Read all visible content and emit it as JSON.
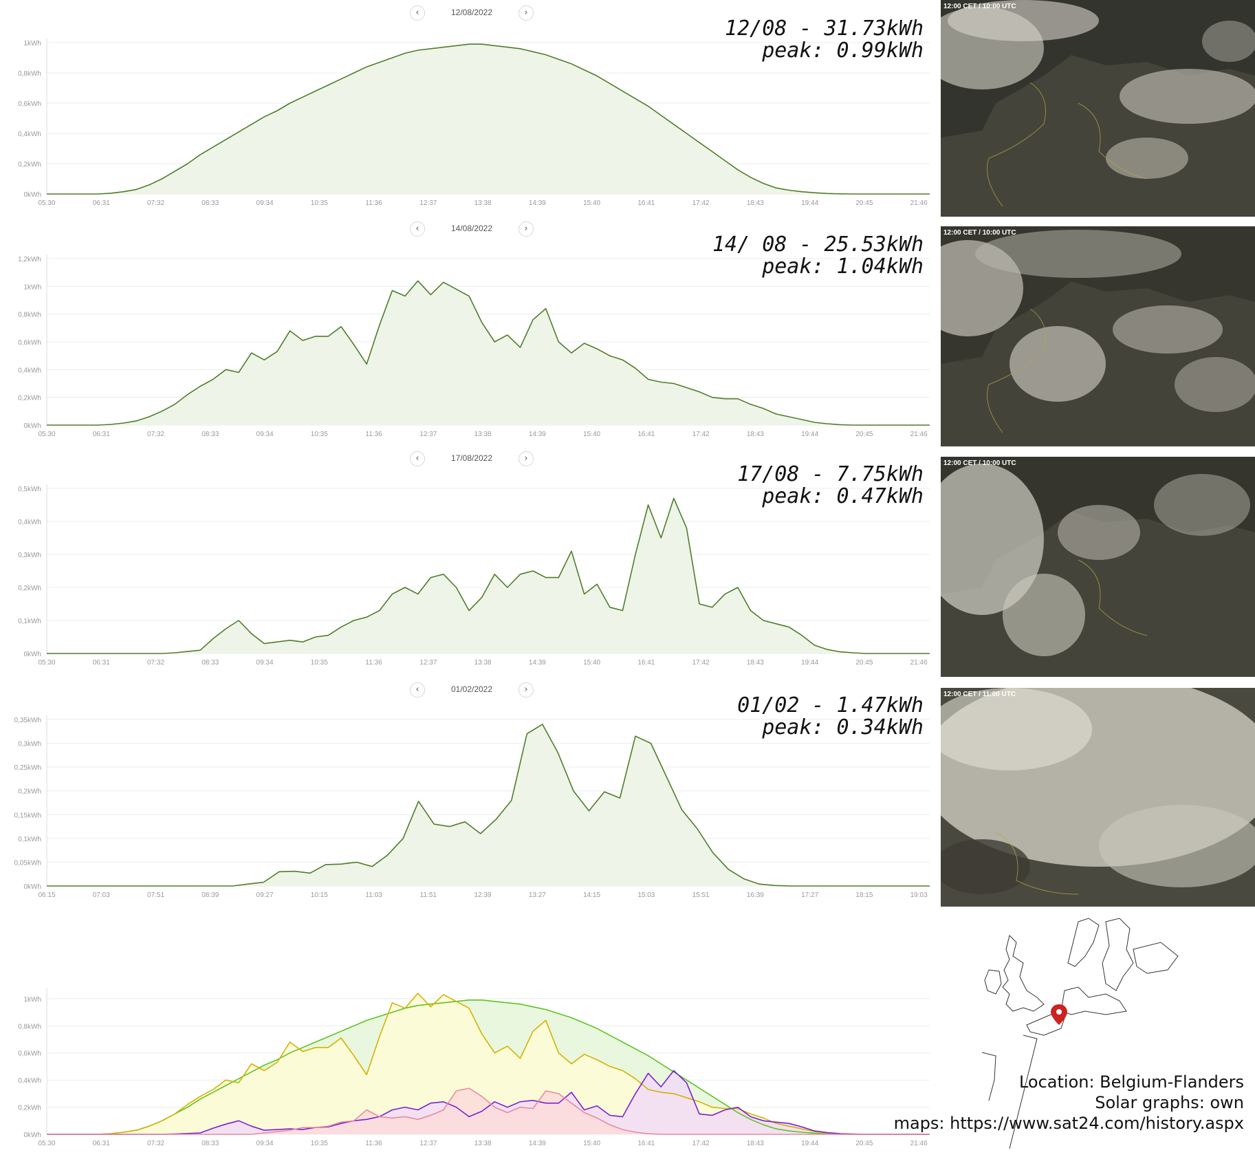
{
  "colors": {
    "line": "#4f7d28",
    "fill": "#eef4e8",
    "grid": "#ececec",
    "axis": "#999999",
    "sat_text": "#ffffff",
    "map_pin": "#cc2222"
  },
  "icons": {
    "prev": "chevron-left-icon",
    "next": "chevron-right-icon",
    "pin": "map-pin-icon"
  },
  "panels": [
    {
      "nav": {
        "prev": "‹",
        "date": "12/08/2022",
        "next": "›"
      },
      "summary": {
        "line1": "12/08 - 31.73kWh",
        "line2": "peak: 0.99kWh"
      },
      "satellite": {
        "label": "12:00 CET / 10:00 UTC"
      }
    },
    {
      "nav": {
        "prev": "‹",
        "date": "14/08/2022",
        "next": "›"
      },
      "summary": {
        "line1": "14/ 08 - 25.53kWh",
        "line2": "peak: 1.04kWh"
      },
      "satellite": {
        "label": "12:00 CET / 10:00 UTC"
      }
    },
    {
      "nav": {
        "prev": "‹",
        "date": "17/08/2022",
        "next": "›"
      },
      "summary": {
        "line1": "17/08 - 7.75kWh",
        "line2": "peak: 0.47kWh"
      },
      "satellite": {
        "label": "12:00 CET / 10:00 UTC"
      }
    },
    {
      "nav": {
        "prev": "‹",
        "date": "01/02/2022",
        "next": "›"
      },
      "summary": {
        "line1": "01/02 - 1.47kWh",
        "line2": "peak: 0.34kWh"
      },
      "satellite": {
        "label": "12:00 CET / 11:00 UTC"
      }
    }
  ],
  "credits": {
    "line1": "Location: Belgium-Flanders",
    "line2": "Solar graphs: own",
    "line3": "maps: https://www.sat24.com/history.aspx"
  },
  "chart_data": [
    {
      "type": "area",
      "title": "12/08/2022",
      "x_labels": [
        "05:30",
        "06:31",
        "07:32",
        "08:33",
        "09:34",
        "10:35",
        "11:36",
        "12:37",
        "13:38",
        "14:39",
        "15:40",
        "16:41",
        "17:42",
        "18:43",
        "19:44",
        "20:45",
        "21:46"
      ],
      "y_labels": [
        "0kWh",
        "0,2kWh",
        "0,4kWh",
        "0,6kWh",
        "0,8kWh",
        "1kWh"
      ],
      "ylim": [
        0,
        1
      ],
      "series": [
        {
          "values": [
            0,
            0,
            0,
            0,
            0,
            0.005,
            0.015,
            0.03,
            0.06,
            0.1,
            0.15,
            0.2,
            0.26,
            0.31,
            0.36,
            0.41,
            0.46,
            0.51,
            0.55,
            0.6,
            0.64,
            0.68,
            0.72,
            0.76,
            0.8,
            0.84,
            0.87,
            0.9,
            0.93,
            0.95,
            0.96,
            0.97,
            0.98,
            0.99,
            0.99,
            0.98,
            0.97,
            0.96,
            0.94,
            0.92,
            0.89,
            0.86,
            0.82,
            0.78,
            0.73,
            0.68,
            0.63,
            0.58,
            0.52,
            0.46,
            0.4,
            0.34,
            0.28,
            0.22,
            0.16,
            0.11,
            0.07,
            0.04,
            0.025,
            0.015,
            0.008,
            0.003,
            0.001,
            0,
            0,
            0,
            0,
            0,
            0,
            0
          ]
        }
      ]
    },
    {
      "type": "area",
      "title": "14/08/2022",
      "x_labels": [
        "05:30",
        "06:31",
        "07:32",
        "08:33",
        "09:34",
        "10:35",
        "11:36",
        "12:37",
        "13:38",
        "14:39",
        "15:40",
        "16:41",
        "17:42",
        "18:43",
        "19:44",
        "20:45",
        "21:46"
      ],
      "y_labels": [
        "0kWh",
        "0,2kWh",
        "0,4kWh",
        "0,6kWh",
        "0,8kWh",
        "1kWh",
        "1,2kWh"
      ],
      "ylim": [
        0,
        1.2
      ],
      "series": [
        {
          "values": [
            0,
            0,
            0,
            0,
            0,
            0.005,
            0.015,
            0.03,
            0.06,
            0.1,
            0.15,
            0.22,
            0.28,
            0.33,
            0.4,
            0.38,
            0.52,
            0.47,
            0.53,
            0.68,
            0.61,
            0.64,
            0.64,
            0.71,
            0.58,
            0.44,
            0.72,
            0.97,
            0.93,
            1.04,
            0.94,
            1.03,
            0.98,
            0.93,
            0.74,
            0.6,
            0.65,
            0.56,
            0.76,
            0.84,
            0.6,
            0.52,
            0.59,
            0.55,
            0.5,
            0.47,
            0.41,
            0.33,
            0.31,
            0.3,
            0.27,
            0.24,
            0.2,
            0.19,
            0.19,
            0.15,
            0.12,
            0.08,
            0.06,
            0.04,
            0.02,
            0.01,
            0.003,
            0,
            0,
            0,
            0,
            0,
            0,
            0
          ]
        }
      ]
    },
    {
      "type": "area",
      "title": "17/08/2022",
      "x_labels": [
        "05:30",
        "06:31",
        "07:32",
        "08:33",
        "09:34",
        "10:35",
        "11:36",
        "12:37",
        "13:38",
        "14:39",
        "15:40",
        "16:41",
        "17:42",
        "18:43",
        "19:44",
        "20:45",
        "21:46"
      ],
      "y_labels": [
        "0kWh",
        "0,1kWh",
        "0,2kWh",
        "0,3kWh",
        "0,4kWh",
        "0,5kWh"
      ],
      "ylim": [
        0,
        0.5
      ],
      "series": [
        {
          "values": [
            0,
            0,
            0,
            0,
            0,
            0,
            0,
            0,
            0,
            0,
            0.002,
            0.006,
            0.01,
            0.045,
            0.075,
            0.1,
            0.06,
            0.03,
            0.035,
            0.04,
            0.035,
            0.05,
            0.055,
            0.08,
            0.1,
            0.11,
            0.13,
            0.18,
            0.2,
            0.18,
            0.23,
            0.24,
            0.2,
            0.13,
            0.17,
            0.24,
            0.2,
            0.24,
            0.25,
            0.23,
            0.23,
            0.31,
            0.18,
            0.21,
            0.14,
            0.13,
            0.3,
            0.45,
            0.35,
            0.47,
            0.38,
            0.15,
            0.14,
            0.18,
            0.2,
            0.13,
            0.1,
            0.09,
            0.08,
            0.055,
            0.025,
            0.012,
            0.005,
            0.002,
            0,
            0,
            0,
            0,
            0,
            0
          ]
        }
      ]
    },
    {
      "type": "area",
      "title": "01/02/2022",
      "x_labels": [
        "06:15",
        "07:03",
        "07:51",
        "08:39",
        "09:27",
        "10:15",
        "11:03",
        "11:51",
        "12:39",
        "13:27",
        "14:15",
        "15:03",
        "15:51",
        "16:39",
        "17:27",
        "18:15",
        "19:03"
      ],
      "y_labels": [
        "0kWh",
        "0,05kWh",
        "0,1kWh",
        "0,15kWh",
        "0,2kWh",
        "0,25kWh",
        "0,3kWh",
        "0,35kWh"
      ],
      "ylim": [
        0,
        0.35
      ],
      "series": [
        {
          "values": [
            0,
            0,
            0,
            0,
            0,
            0,
            0,
            0,
            0,
            0,
            0,
            0,
            0,
            0.004,
            0.008,
            0.03,
            0.031,
            0.027,
            0.045,
            0.046,
            0.05,
            0.041,
            0.065,
            0.1,
            0.178,
            0.13,
            0.125,
            0.135,
            0.11,
            0.14,
            0.18,
            0.32,
            0.34,
            0.28,
            0.2,
            0.158,
            0.198,
            0.185,
            0.315,
            0.3,
            0.23,
            0.16,
            0.12,
            0.07,
            0.035,
            0.015,
            0.004,
            0.001,
            0,
            0,
            0,
            0,
            0,
            0,
            0,
            0,
            0,
            0
          ]
        }
      ]
    },
    {
      "type": "area",
      "title": "",
      "x_labels": [
        "05:30",
        "06:31",
        "07:32",
        "08:33",
        "09:34",
        "10:35",
        "11:36",
        "12:37",
        "13:38",
        "14:39",
        "15:40",
        "16:41",
        "17:42",
        "18:43",
        "19:44",
        "20:45",
        "21:46"
      ],
      "y_labels": [
        "0kWh",
        "0,2kWh",
        "0,4kWh",
        "0,6kWh",
        "0,8kWh",
        "1kWh"
      ],
      "ylim": [
        0,
        1.05
      ],
      "series": [
        {
          "color": "#5bc41f",
          "fill": "#e5f6d8",
          "values": [
            0,
            0,
            0,
            0,
            0,
            0.005,
            0.015,
            0.03,
            0.06,
            0.1,
            0.15,
            0.2,
            0.26,
            0.31,
            0.36,
            0.41,
            0.46,
            0.51,
            0.55,
            0.6,
            0.64,
            0.68,
            0.72,
            0.76,
            0.8,
            0.84,
            0.87,
            0.9,
            0.93,
            0.95,
            0.96,
            0.97,
            0.98,
            0.99,
            0.99,
            0.98,
            0.97,
            0.96,
            0.94,
            0.92,
            0.89,
            0.86,
            0.82,
            0.78,
            0.73,
            0.68,
            0.63,
            0.58,
            0.52,
            0.46,
            0.4,
            0.34,
            0.28,
            0.22,
            0.16,
            0.11,
            0.07,
            0.04,
            0.025,
            0.015,
            0.008,
            0.003,
            0.001,
            0,
            0,
            0,
            0,
            0,
            0,
            0
          ]
        },
        {
          "color": "#d1b300",
          "fill": "#fffbd6",
          "values": [
            0,
            0,
            0,
            0,
            0,
            0.005,
            0.015,
            0.03,
            0.06,
            0.1,
            0.15,
            0.22,
            0.28,
            0.33,
            0.4,
            0.38,
            0.52,
            0.47,
            0.53,
            0.68,
            0.61,
            0.64,
            0.64,
            0.71,
            0.58,
            0.44,
            0.72,
            0.97,
            0.93,
            1.04,
            0.94,
            1.03,
            0.98,
            0.93,
            0.74,
            0.6,
            0.65,
            0.56,
            0.76,
            0.84,
            0.6,
            0.52,
            0.59,
            0.55,
            0.5,
            0.47,
            0.41,
            0.33,
            0.31,
            0.3,
            0.27,
            0.24,
            0.2,
            0.19,
            0.19,
            0.15,
            0.12,
            0.08,
            0.06,
            0.04,
            0.02,
            0.01,
            0.003,
            0,
            0,
            0,
            0,
            0,
            0,
            0
          ]
        },
        {
          "color": "#7a1fd6",
          "fill": "#f1dcf7",
          "values": [
            0,
            0,
            0,
            0,
            0,
            0,
            0,
            0,
            0,
            0,
            0.002,
            0.006,
            0.01,
            0.045,
            0.075,
            0.1,
            0.06,
            0.03,
            0.035,
            0.04,
            0.035,
            0.05,
            0.055,
            0.08,
            0.1,
            0.11,
            0.13,
            0.18,
            0.2,
            0.18,
            0.23,
            0.24,
            0.2,
            0.13,
            0.17,
            0.24,
            0.2,
            0.24,
            0.25,
            0.23,
            0.23,
            0.31,
            0.18,
            0.21,
            0.14,
            0.13,
            0.3,
            0.45,
            0.35,
            0.47,
            0.38,
            0.15,
            0.14,
            0.18,
            0.2,
            0.13,
            0.1,
            0.09,
            0.08,
            0.055,
            0.025,
            0.012,
            0.005,
            0.002,
            0,
            0,
            0,
            0,
            0,
            0
          ]
        },
        {
          "color": "#e88aa0",
          "fill": "#fbdcdc",
          "values": [
            0,
            0,
            0,
            0,
            0,
            0,
            0,
            0,
            0,
            0,
            0,
            0,
            0,
            0,
            0,
            0,
            0,
            0.01,
            0.02,
            0.03,
            0.05,
            0.05,
            0.06,
            0.09,
            0.1,
            0.18,
            0.13,
            0.12,
            0.13,
            0.11,
            0.14,
            0.18,
            0.32,
            0.34,
            0.28,
            0.2,
            0.16,
            0.2,
            0.19,
            0.32,
            0.3,
            0.23,
            0.16,
            0.12,
            0.07,
            0.035,
            0.015,
            0.004,
            0,
            0,
            0,
            0,
            0,
            0,
            0,
            0,
            0,
            0,
            0,
            0,
            0,
            0,
            0,
            0,
            0,
            0,
            0,
            0,
            0,
            0
          ]
        }
      ]
    }
  ]
}
